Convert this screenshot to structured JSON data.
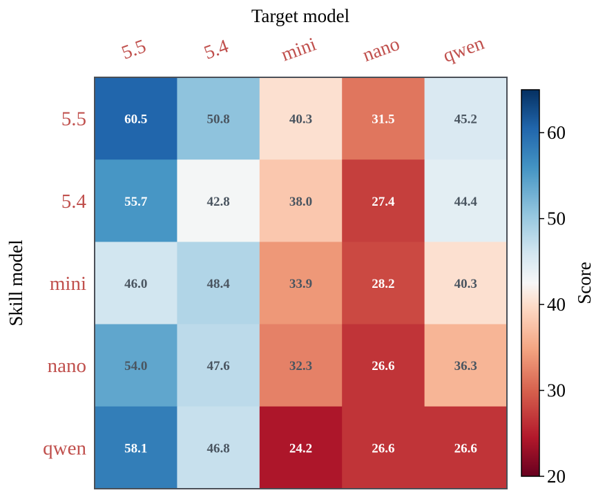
{
  "chart_data": {
    "type": "heatmap",
    "title": "",
    "xlabel": "Target model",
    "ylabel": "Skill model",
    "x_categories": [
      "5.5",
      "5.4",
      "mini",
      "nano",
      "qwen"
    ],
    "y_categories": [
      "5.5",
      "5.4",
      "mini",
      "nano",
      "qwen"
    ],
    "values": [
      [
        60.5,
        50.8,
        40.3,
        31.5,
        45.2
      ],
      [
        55.7,
        42.8,
        38.0,
        27.4,
        44.4
      ],
      [
        46.0,
        48.4,
        33.9,
        28.2,
        40.3
      ],
      [
        54.0,
        47.6,
        32.3,
        26.6,
        36.3
      ],
      [
        58.1,
        46.8,
        24.2,
        26.6,
        26.6
      ]
    ],
    "value_format": "0.1f",
    "colormap": "RdBu",
    "colorbar": {
      "label": "Score",
      "vmin": 20,
      "vmax": 65,
      "ticks": [
        20,
        30,
        40,
        50,
        60
      ]
    },
    "tick_label_color": "#c0504d",
    "annotation_dark_color": "#4a5560",
    "annotation_light_color": "#ffffff",
    "grid": false
  }
}
